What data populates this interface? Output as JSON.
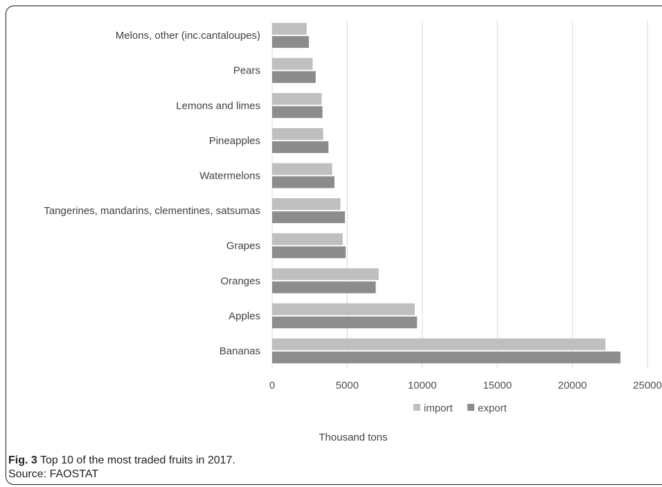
{
  "chart_data": {
    "type": "bar",
    "orientation": "horizontal",
    "categories": [
      "Bananas",
      "Apples",
      "Oranges",
      "Grapes",
      "Tangerines, mandarins, clementines, satsumas",
      "Watermelons",
      "Pineapples",
      "Lemons and limes",
      "Pears",
      "Melons, other (inc.cantaloupes)"
    ],
    "series": [
      {
        "name": "import",
        "color": "#bfbfbf",
        "values": [
          22200,
          9500,
          7100,
          4700,
          4550,
          4000,
          3400,
          3300,
          2700,
          2300
        ]
      },
      {
        "name": "export",
        "color": "#8c8c8c",
        "values": [
          23200,
          9650,
          6900,
          4900,
          4850,
          4150,
          3750,
          3350,
          2900,
          2450
        ]
      }
    ],
    "xlim": [
      0,
      25000
    ],
    "xticks": [
      "0",
      "5000",
      "10000",
      "15000",
      "20000",
      "25000"
    ],
    "xlabel": "Thousand tons",
    "grid": "vertical",
    "legend_position": "bottom"
  },
  "caption": {
    "label": "Fig. 3",
    "text": " Top 10 of the most traded fruits in 2017.",
    "source": "Source: FAOSTAT"
  }
}
